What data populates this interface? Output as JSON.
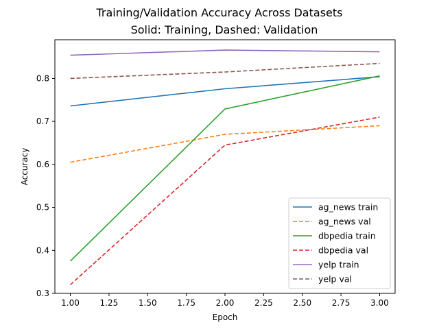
{
  "chart_data": {
    "type": "line",
    "title": "Training/Validation Accuracy Across Datasets",
    "subtitle": "Solid: Training, Dashed: Validation",
    "xlabel": "Epoch",
    "ylabel": "Accuracy",
    "xlim": [
      0.9,
      3.1
    ],
    "ylim": [
      0.3,
      0.89
    ],
    "xticks": [
      "1.00",
      "1.25",
      "1.50",
      "1.75",
      "2.00",
      "2.25",
      "2.50",
      "2.75",
      "3.00"
    ],
    "yticks": [
      "0.3",
      "0.4",
      "0.5",
      "0.6",
      "0.7",
      "0.8"
    ],
    "grid": false,
    "legend_position": "bottom-right",
    "x": [
      1,
      2,
      3
    ],
    "series": [
      {
        "name": "ag_news train",
        "values": [
          0.736,
          0.776,
          0.804
        ],
        "color": "#1f77b4",
        "dash": false
      },
      {
        "name": "ag_news val",
        "values": [
          0.605,
          0.67,
          0.69
        ],
        "color": "#ff7f0e",
        "dash": true
      },
      {
        "name": "dbpedia train",
        "values": [
          0.375,
          0.729,
          0.806
        ],
        "color": "#2ca02c",
        "dash": false
      },
      {
        "name": "dbpedia val",
        "values": [
          0.32,
          0.645,
          0.71
        ],
        "color": "#d62728",
        "dash": true
      },
      {
        "name": "yelp train",
        "values": [
          0.854,
          0.866,
          0.862
        ],
        "color": "#9467bd",
        "dash": false
      },
      {
        "name": "yelp val",
        "values": [
          0.8,
          0.815,
          0.835
        ],
        "color": "#8c564b",
        "dash": true
      }
    ]
  }
}
